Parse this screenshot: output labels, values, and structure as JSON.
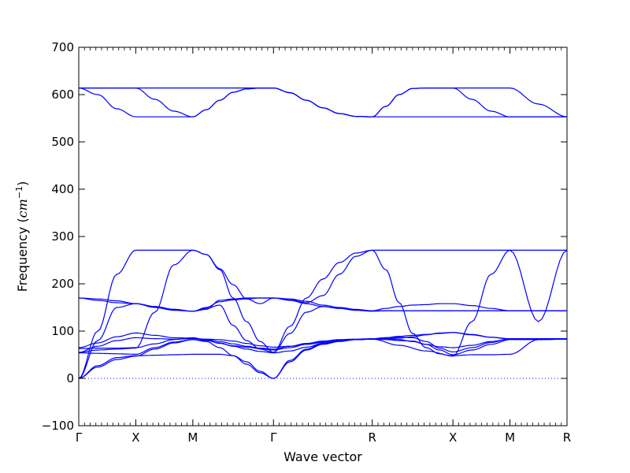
{
  "chart_data": {
    "type": "line",
    "title": "",
    "xlabel": "Wave vector",
    "ylabel_prefix": "Frequency (",
    "ylabel_unit_base": "cm",
    "ylabel_unit_exp": "−1",
    "ylabel_suffix": ")",
    "ylim": [
      -100,
      700
    ],
    "yticks": [
      -100,
      0,
      100,
      200,
      300,
      400,
      500,
      600,
      700
    ],
    "high_symbol_points": [
      {
        "label": "Γ",
        "x": 0.0
      },
      {
        "label": "X",
        "x": 0.5
      },
      {
        "label": "M",
        "x": 1.0
      },
      {
        "label": "Γ",
        "x": 1.7071
      },
      {
        "label": "R",
        "x": 2.5731
      },
      {
        "label": "X",
        "x": 3.2802
      },
      {
        "label": "M",
        "x": 3.7802
      },
      {
        "label": "R",
        "x": 4.2802
      }
    ],
    "zero_line": {
      "y": 0,
      "style": "dotted"
    },
    "line_color": "#0000ff",
    "segments_samples": 7,
    "bands": [
      {
        "name": "",
        "values": [
          [
            0,
            27,
            44,
            48
          ],
          [
            48,
            49,
            50,
            51
          ],
          [
            51,
            51,
            51,
            48,
            35,
            15,
            0
          ],
          [
            0,
            35,
            60,
            72,
            78,
            82,
            83
          ],
          [
            83,
            70,
            58,
            48
          ],
          [
            48,
            50,
            50,
            51
          ],
          [
            51,
            82,
            83
          ]
        ]
      },
      {
        "name": "",
        "values": [
          [
            0,
            24,
            40,
            47
          ],
          [
            47,
            62,
            75,
            82
          ],
          [
            82,
            78,
            65,
            48,
            30,
            12,
            0
          ],
          [
            0,
            38,
            62,
            74,
            79,
            82,
            83
          ],
          [
            83,
            82,
            80,
            79,
            72,
            60,
            50
          ],
          [
            50,
            60,
            72,
            82
          ],
          [
            82,
            82,
            83
          ]
        ]
      },
      {
        "name": "",
        "values": [
          [
            54,
            53,
            52,
            51
          ],
          [
            51,
            65,
            77,
            82
          ],
          [
            82,
            80,
            75,
            68,
            62,
            57,
            54
          ],
          [
            54,
            58,
            66,
            74,
            79,
            82,
            83
          ],
          [
            83,
            84,
            85,
            88,
            92,
            96,
            97
          ],
          [
            97,
            93,
            87,
            84
          ],
          [
            84,
            83,
            84
          ]
        ]
      },
      {
        "name": "",
        "values": [
          [
            55,
            68,
            80,
            86
          ],
          [
            86,
            84,
            83,
            84
          ],
          [
            84,
            83,
            82,
            79,
            74,
            69,
            66
          ],
          [
            66,
            68,
            72,
            76,
            80,
            82,
            83
          ],
          [
            83,
            84,
            82,
            78,
            72,
            67,
            65
          ],
          [
            65,
            70,
            78,
            83
          ],
          [
            83,
            83,
            83
          ]
        ]
      },
      {
        "name": "",
        "values": [
          [
            63,
            64,
            64,
            65
          ],
          [
            65,
            73,
            82,
            86
          ],
          [
            86,
            81,
            74,
            69,
            66,
            63,
            60
          ],
          [
            60,
            65,
            72,
            77,
            80,
            82,
            83
          ],
          [
            83,
            86,
            89,
            91,
            93,
            95,
            97
          ],
          [
            97,
            92,
            87,
            83
          ],
          [
            83,
            84,
            84
          ]
        ]
      },
      {
        "name": "",
        "values": [
          [
            65,
            75,
            88,
            96
          ],
          [
            96,
            91,
            86,
            85
          ],
          [
            85,
            82,
            78,
            73,
            68,
            64,
            62
          ],
          [
            62,
            68,
            74,
            79,
            82,
            83,
            84
          ],
          [
            84,
            86,
            87,
            86,
            78,
            64,
            56
          ],
          [
            56,
            65,
            76,
            84
          ],
          [
            84,
            84,
            84
          ]
        ]
      },
      {
        "name": "",
        "values": [
          [
            170,
            168,
            164,
            158
          ],
          [
            158,
            150,
            144,
            142
          ],
          [
            142,
            148,
            155,
            112,
            80,
            62,
            55
          ],
          [
            55,
            95,
            140,
            152,
            148,
            144,
            142
          ],
          [
            142,
            143,
            143,
            143,
            143,
            143,
            143
          ],
          [
            143,
            143,
            143,
            143
          ],
          [
            143,
            143,
            143
          ]
        ]
      },
      {
        "name": "",
        "values": [
          [
            170,
            165,
            160,
            158
          ],
          [
            158,
            152,
            146,
            142
          ],
          [
            142,
            150,
            162,
            166,
            168,
            170,
            170
          ],
          [
            170,
            166,
            160,
            175,
            220,
            258,
            271
          ],
          [
            271,
            230,
            160,
            95,
            65,
            52,
            47
          ],
          [
            47,
            120,
            220,
            271
          ],
          [
            271,
            271,
            271
          ]
        ]
      },
      {
        "name": "",
        "values": [
          [
            0,
            80,
            150,
            158
          ],
          [
            158,
            152,
            146,
            142
          ],
          [
            142,
            146,
            165,
            168,
            170,
            170,
            170
          ],
          [
            170,
            165,
            158,
            152,
            148,
            145,
            143
          ],
          [
            143,
            148,
            152,
            155,
            156,
            158,
            158
          ],
          [
            158,
            154,
            148,
            143
          ],
          [
            143,
            143,
            143
          ]
        ]
      },
      {
        "name": "",
        "values": [
          [
            0,
            100,
            220,
            271
          ],
          [
            271,
            271,
            271,
            271
          ],
          [
            271,
            262,
            230,
            170,
            120,
            78,
            55
          ],
          [
            55,
            110,
            170,
            210,
            245,
            265,
            271
          ],
          [
            271,
            271,
            271,
            271,
            271,
            271,
            271
          ],
          [
            271,
            271,
            271,
            271
          ],
          [
            271,
            120,
            271
          ]
        ]
      },
      {
        "name": "",
        "values": [
          [
            55,
            60,
            62,
            64
          ],
          [
            64,
            140,
            240,
            271
          ],
          [
            271,
            262,
            232,
            198,
            168,
            158,
            170
          ],
          [
            170,
            168,
            163,
            155,
            150,
            146,
            143
          ],
          [
            143,
            143,
            143,
            143,
            143,
            143,
            143
          ],
          [
            143,
            143,
            143,
            143
          ],
          [
            143,
            143,
            143
          ]
        ]
      },
      {
        "name": "",
        "values": [
          [
            614,
            614,
            614,
            614
          ],
          [
            614,
            614,
            614,
            614
          ],
          [
            614,
            614,
            614,
            614,
            614,
            614,
            614
          ],
          [
            614,
            604,
            588,
            572,
            560,
            554,
            553
          ],
          [
            553,
            575,
            600,
            613,
            614,
            614,
            614
          ],
          [
            614,
            614,
            614,
            614
          ],
          [
            614,
            580,
            553
          ]
        ]
      },
      {
        "name": "",
        "values": [
          [
            614,
            614,
            614,
            614
          ],
          [
            614,
            590,
            565,
            553
          ],
          [
            553,
            568,
            588,
            605,
            612,
            614,
            614
          ],
          [
            614,
            604,
            588,
            572,
            560,
            554,
            553
          ],
          [
            553,
            575,
            600,
            613,
            614,
            614,
            614
          ],
          [
            614,
            590,
            565,
            553
          ],
          [
            553,
            553,
            553
          ]
        ]
      },
      {
        "name": "",
        "values": [
          [
            614,
            600,
            570,
            553
          ],
          [
            553,
            553,
            553,
            553
          ],
          [
            553,
            568,
            588,
            605,
            612,
            614,
            614
          ],
          [
            614,
            604,
            588,
            572,
            560,
            554,
            553
          ],
          [
            553,
            553,
            553,
            553,
            553,
            553,
            553
          ],
          [
            553,
            553,
            553,
            553
          ],
          [
            553,
            553,
            553
          ]
        ]
      }
    ]
  }
}
